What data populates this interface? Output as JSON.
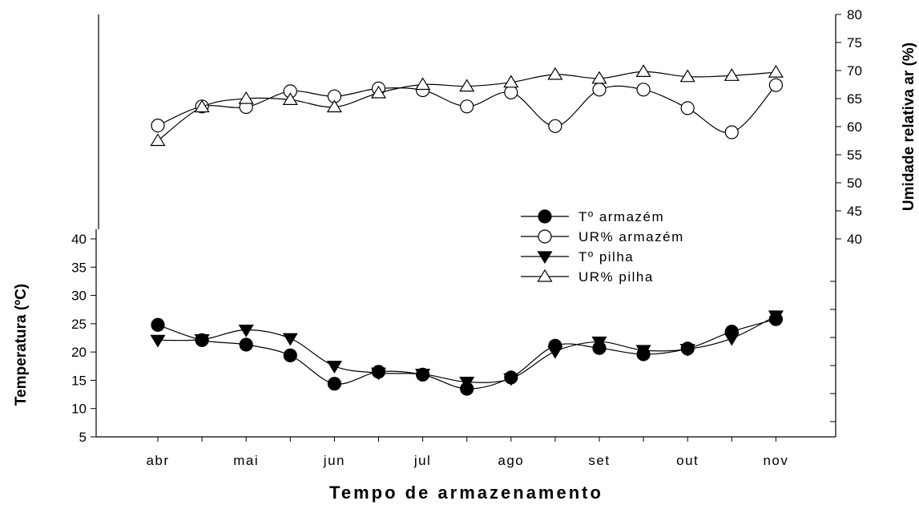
{
  "chart_data": {
    "type": "line",
    "xlabel": "Tempo de armazenamento",
    "ylabel_left": "Temperatura (ºC)",
    "ylabel_right": "Umidade relativa ar (%)",
    "month_labels": [
      "abr",
      "mai",
      "jun",
      "jul",
      "ago",
      "set",
      "out",
      "nov"
    ],
    "x": [
      0,
      0.5,
      1,
      1.5,
      2,
      2.5,
      3,
      3.5,
      4,
      4.5,
      5,
      5.5,
      6,
      6.5,
      7
    ],
    "ylim_left": [
      5,
      40
    ],
    "ylim_right": [
      40,
      80
    ],
    "yticks_left": [
      5,
      10,
      15,
      20,
      25,
      30,
      35,
      40
    ],
    "yticks_right": [
      40,
      45,
      50,
      55,
      60,
      65,
      70,
      75,
      80
    ],
    "legend_position": "center-right",
    "series": [
      {
        "name": "Tº armazém",
        "axis": "left",
        "marker": "filled-circle",
        "values": [
          24.8,
          22.1,
          21.3,
          19.4,
          14.4,
          16.5,
          16.0,
          13.5,
          15.5,
          21.1,
          20.7,
          19.6,
          20.6,
          23.6,
          25.8
        ]
      },
      {
        "name": "UR% armazém",
        "axis": "right",
        "marker": "open-circle",
        "values": [
          60.2,
          63.6,
          63.5,
          66.3,
          65.4,
          66.8,
          66.5,
          63.6,
          66.1,
          60.1,
          66.6,
          66.6,
          63.3,
          59.0,
          67.4
        ]
      },
      {
        "name": "Tº pilha",
        "axis": "left",
        "marker": "filled-triangle-down",
        "values": [
          22.1,
          22.2,
          23.9,
          22.4,
          17.5,
          16.3,
          16.1,
          14.7,
          15.3,
          20.1,
          21.8,
          20.3,
          20.5,
          22.4,
          26.4
        ]
      },
      {
        "name": "UR% pilha",
        "axis": "right",
        "marker": "open-triangle-up",
        "values": [
          57.5,
          63.5,
          65.0,
          64.8,
          63.5,
          66.0,
          67.5,
          67.2,
          67.9,
          69.3,
          68.6,
          69.8,
          68.9,
          69.1,
          69.7
        ]
      }
    ]
  }
}
